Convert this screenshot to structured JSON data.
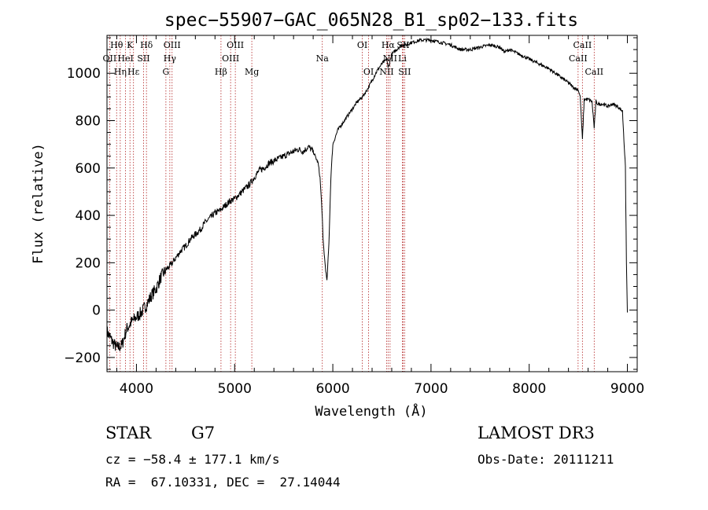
{
  "chart_data": {
    "type": "line",
    "title": "spec−55907−GAC_065N28_B1_sp02−133.fits",
    "xlabel": "Wavelength (Å)",
    "ylabel": "Flux (relative)",
    "xlim": [
      3700,
      9100
    ],
    "ylim": [
      -260,
      1160
    ],
    "xticks": [
      4000,
      5000,
      6000,
      7000,
      8000,
      9000
    ],
    "yticks": [
      -200,
      0,
      200,
      400,
      600,
      800,
      1000
    ],
    "grid": false,
    "series": [
      {
        "name": "spectrum",
        "x": [
          3700,
          3750,
          3800,
          3850,
          3900,
          3950,
          4000,
          4050,
          4100,
          4150,
          4200,
          4250,
          4300,
          4350,
          4400,
          4450,
          4500,
          4550,
          4600,
          4650,
          4700,
          4750,
          4800,
          4850,
          4900,
          4950,
          5000,
          5050,
          5100,
          5150,
          5200,
          5250,
          5300,
          5350,
          5400,
          5450,
          5500,
          5550,
          5600,
          5650,
          5700,
          5750,
          5800,
          5850,
          5870,
          5890,
          5900,
          5920,
          5940,
          5960,
          5980,
          6000,
          6050,
          6100,
          6150,
          6200,
          6250,
          6300,
          6350,
          6400,
          6450,
          6500,
          6550,
          6563,
          6600,
          6650,
          6700,
          6750,
          6800,
          6900,
          7000,
          7100,
          7200,
          7300,
          7400,
          7500,
          7600,
          7700,
          7750,
          7800,
          7900,
          8000,
          8100,
          8200,
          8300,
          8400,
          8450,
          8500,
          8520,
          8542,
          8560,
          8600,
          8640,
          8662,
          8680,
          8700,
          8750,
          8800,
          8850,
          8900,
          8950,
          8980,
          8990,
          9000
        ],
        "values": [
          -90,
          -130,
          -160,
          -150,
          -80,
          -50,
          -30,
          -10,
          20,
          60,
          90,
          140,
          170,
          190,
          220,
          250,
          270,
          300,
          320,
          340,
          370,
          390,
          410,
          420,
          440,
          460,
          470,
          490,
          510,
          530,
          560,
          590,
          600,
          620,
          630,
          640,
          650,
          660,
          670,
          680,
          670,
          690,
          670,
          620,
          560,
          420,
          300,
          200,
          120,
          280,
          560,
          700,
          760,
          790,
          820,
          850,
          880,
          900,
          930,
          970,
          1010,
          1040,
          1060,
          1020,
          1080,
          1100,
          1120,
          1120,
          1130,
          1140,
          1140,
          1130,
          1120,
          1100,
          1100,
          1110,
          1120,
          1110,
          1090,
          1100,
          1080,
          1060,
          1040,
          1020,
          990,
          960,
          940,
          930,
          900,
          720,
          890,
          890,
          880,
          770,
          880,
          870,
          870,
          860,
          870,
          860,
          840,
          600,
          200,
          -10
        ]
      }
    ],
    "line_markers": [
      {
        "label": "Hθ",
        "wl": 3798,
        "row": 1
      },
      {
        "label": "OII",
        "wl": 3727,
        "row": 2
      },
      {
        "label": "Hη",
        "wl": 3835,
        "row": 3
      },
      {
        "label": "HeI",
        "wl": 3889,
        "row": 2
      },
      {
        "label": "K",
        "wl": 3934,
        "row": 1
      },
      {
        "label": "Hε",
        "wl": 3970,
        "row": 3
      },
      {
        "label": "SII",
        "wl": 4072,
        "row": 2
      },
      {
        "label": "Hδ",
        "wl": 4102,
        "row": 1
      },
      {
        "label": "G",
        "wl": 4300,
        "row": 3
      },
      {
        "label": "Hγ",
        "wl": 4340,
        "row": 2
      },
      {
        "label": "OIII",
        "wl": 4363,
        "row": 1
      },
      {
        "label": "Hβ",
        "wl": 4861,
        "row": 3
      },
      {
        "label": "OIII",
        "wl": 4959,
        "row": 2
      },
      {
        "label": "OIII",
        "wl": 5007,
        "row": 1
      },
      {
        "label": "Mg",
        "wl": 5175,
        "row": 3
      },
      {
        "label": "Na",
        "wl": 5893,
        "row": 2
      },
      {
        "label": "OI",
        "wl": 6300,
        "row": 1
      },
      {
        "label": "OI",
        "wl": 6364,
        "row": 3
      },
      {
        "label": "NII",
        "wl": 6548,
        "row": 3
      },
      {
        "label": "Hα",
        "wl": 6563,
        "row": 1
      },
      {
        "label": "NII",
        "wl": 6583,
        "row": 2
      },
      {
        "label": "SII",
        "wl": 6716,
        "row": 1
      },
      {
        "label": "Li",
        "wl": 6708,
        "row": 2
      },
      {
        "label": "SII",
        "wl": 6731,
        "row": 3
      },
      {
        "label": "CaII",
        "wl": 8498,
        "row": 2
      },
      {
        "label": "CaII",
        "wl": 8542,
        "row": 1
      },
      {
        "label": "CaII",
        "wl": 8662,
        "row": 3
      }
    ]
  },
  "info": {
    "object_class": "STAR",
    "subclass": "G7",
    "survey": "LAMOST DR3",
    "cz": "cz = −58.4 ± 177.1 km/s",
    "obs_date": "Obs-Date: 20111211",
    "coords": "RA =  67.10331, DEC =  27.14044"
  },
  "colors": {
    "spectrum": "#000000",
    "marker": "#b22222",
    "axes": "#000000"
  }
}
